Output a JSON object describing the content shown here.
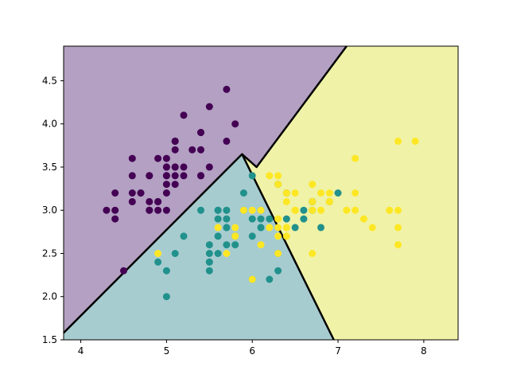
{
  "chart_data": {
    "type": "scatter",
    "title": "",
    "xlabel": "",
    "ylabel": "",
    "xlim": [
      3.8,
      8.4
    ],
    "ylim": [
      1.5,
      4.9
    ],
    "grid": false,
    "x_ticks": [
      4,
      5,
      6,
      7,
      8
    ],
    "x_tick_labels": [
      "4",
      "5",
      "6",
      "7",
      "8"
    ],
    "y_ticks": [
      1.5,
      2.0,
      2.5,
      3.0,
      3.5,
      4.0,
      4.5
    ],
    "y_tick_labels": [
      "1.5",
      "2.0",
      "2.5",
      "3.0",
      "3.5",
      "4.0",
      "4.5"
    ],
    "regions": [
      {
        "class": 0,
        "color": "#b3a0c2",
        "polygon": [
          [
            3.8,
            1.58
          ],
          [
            5.88,
            3.65
          ],
          [
            6.05,
            3.5
          ],
          [
            7.1,
            4.9
          ],
          [
            3.8,
            4.9
          ]
        ]
      },
      {
        "class": 1,
        "color": "#a7ccd0",
        "polygon": [
          [
            3.8,
            1.5
          ],
          [
            3.8,
            1.58
          ],
          [
            5.88,
            3.65
          ],
          [
            6.95,
            1.5
          ]
        ]
      },
      {
        "class": 2,
        "color": "#f0f2a7",
        "polygon": [
          [
            5.88,
            3.65
          ],
          [
            6.05,
            3.5
          ],
          [
            7.1,
            4.9
          ],
          [
            8.4,
            4.9
          ],
          [
            8.4,
            1.5
          ],
          [
            6.95,
            1.5
          ]
        ]
      }
    ],
    "boundaries": [
      [
        [
          3.8,
          1.58
        ],
        [
          5.88,
          3.65
        ],
        [
          6.95,
          1.5
        ]
      ],
      [
        [
          5.88,
          3.65
        ],
        [
          6.05,
          3.5
        ],
        [
          7.1,
          4.9
        ]
      ]
    ],
    "series": [
      {
        "class": 0,
        "color": "#440154",
        "points": [
          [
            5.1,
            3.5
          ],
          [
            4.9,
            3.0
          ],
          [
            4.7,
            3.2
          ],
          [
            4.6,
            3.1
          ],
          [
            5.0,
            3.6
          ],
          [
            5.4,
            3.9
          ],
          [
            4.6,
            3.4
          ],
          [
            5.0,
            3.4
          ],
          [
            4.4,
            2.9
          ],
          [
            4.9,
            3.1
          ],
          [
            5.4,
            3.7
          ],
          [
            4.8,
            3.4
          ],
          [
            4.8,
            3.0
          ],
          [
            4.3,
            3.0
          ],
          [
            5.8,
            4.0
          ],
          [
            5.7,
            4.4
          ],
          [
            5.4,
            3.9
          ],
          [
            5.1,
            3.5
          ],
          [
            5.7,
            3.8
          ],
          [
            5.1,
            3.8
          ],
          [
            5.4,
            3.4
          ],
          [
            5.1,
            3.7
          ],
          [
            4.6,
            3.6
          ],
          [
            5.1,
            3.3
          ],
          [
            4.8,
            3.4
          ],
          [
            5.0,
            3.0
          ],
          [
            5.0,
            3.4
          ],
          [
            5.2,
            3.5
          ],
          [
            5.2,
            3.4
          ],
          [
            4.7,
            3.2
          ],
          [
            4.8,
            3.1
          ],
          [
            5.4,
            3.4
          ],
          [
            5.2,
            4.1
          ],
          [
            5.5,
            4.2
          ],
          [
            4.9,
            3.1
          ],
          [
            5.0,
            3.2
          ],
          [
            5.5,
            3.5
          ],
          [
            4.9,
            3.6
          ],
          [
            4.4,
            3.0
          ],
          [
            5.1,
            3.4
          ],
          [
            5.0,
            3.5
          ],
          [
            4.5,
            2.3
          ],
          [
            4.4,
            3.2
          ],
          [
            5.0,
            3.5
          ],
          [
            5.1,
            3.8
          ],
          [
            4.8,
            3.0
          ],
          [
            5.1,
            3.8
          ],
          [
            4.6,
            3.2
          ],
          [
            5.3,
            3.7
          ],
          [
            5.0,
            3.3
          ]
        ]
      },
      {
        "class": 1,
        "color": "#21918c",
        "points": [
          [
            7.0,
            3.2
          ],
          [
            6.4,
            3.2
          ],
          [
            6.9,
            3.1
          ],
          [
            5.5,
            2.3
          ],
          [
            6.5,
            2.8
          ],
          [
            5.7,
            2.8
          ],
          [
            6.3,
            3.3
          ],
          [
            4.9,
            2.4
          ],
          [
            6.6,
            2.9
          ],
          [
            5.2,
            2.7
          ],
          [
            5.0,
            2.0
          ],
          [
            5.9,
            3.0
          ],
          [
            6.0,
            2.2
          ],
          [
            6.1,
            2.9
          ],
          [
            5.6,
            2.9
          ],
          [
            6.7,
            3.1
          ],
          [
            5.6,
            3.0
          ],
          [
            5.8,
            2.7
          ],
          [
            6.2,
            2.2
          ],
          [
            5.6,
            2.5
          ],
          [
            5.9,
            3.2
          ],
          [
            6.1,
            2.8
          ],
          [
            6.3,
            2.5
          ],
          [
            6.1,
            2.8
          ],
          [
            6.4,
            2.9
          ],
          [
            6.6,
            3.0
          ],
          [
            6.8,
            2.8
          ],
          [
            6.7,
            3.0
          ],
          [
            6.0,
            2.9
          ],
          [
            5.7,
            2.6
          ],
          [
            5.5,
            2.4
          ],
          [
            5.5,
            2.4
          ],
          [
            5.8,
            2.7
          ],
          [
            6.0,
            2.7
          ],
          [
            5.4,
            3.0
          ],
          [
            6.0,
            3.4
          ],
          [
            6.7,
            3.1
          ],
          [
            6.3,
            2.3
          ],
          [
            5.6,
            3.0
          ],
          [
            5.5,
            2.5
          ],
          [
            5.5,
            2.6
          ],
          [
            6.1,
            3.0
          ],
          [
            5.8,
            2.6
          ],
          [
            5.0,
            2.3
          ],
          [
            5.6,
            2.7
          ],
          [
            5.7,
            3.0
          ],
          [
            5.7,
            2.9
          ],
          [
            6.2,
            2.9
          ],
          [
            5.1,
            2.5
          ],
          [
            5.7,
            2.8
          ]
        ]
      },
      {
        "class": 2,
        "color": "#fde725",
        "points": [
          [
            6.3,
            3.3
          ],
          [
            5.8,
            2.7
          ],
          [
            7.1,
            3.0
          ],
          [
            6.3,
            2.9
          ],
          [
            6.5,
            3.0
          ],
          [
            7.6,
            3.0
          ],
          [
            4.9,
            2.5
          ],
          [
            7.3,
            2.9
          ],
          [
            6.7,
            2.5
          ],
          [
            7.2,
            3.6
          ],
          [
            6.5,
            3.2
          ],
          [
            6.4,
            2.7
          ],
          [
            6.8,
            3.0
          ],
          [
            5.7,
            2.5
          ],
          [
            5.8,
            2.8
          ],
          [
            6.4,
            3.2
          ],
          [
            6.5,
            3.0
          ],
          [
            7.7,
            3.8
          ],
          [
            7.7,
            2.6
          ],
          [
            6.0,
            2.2
          ],
          [
            6.9,
            3.2
          ],
          [
            5.6,
            2.8
          ],
          [
            7.7,
            2.8
          ],
          [
            6.3,
            2.7
          ],
          [
            6.7,
            3.3
          ],
          [
            7.2,
            3.2
          ],
          [
            6.2,
            2.8
          ],
          [
            6.1,
            3.0
          ],
          [
            6.4,
            2.8
          ],
          [
            7.2,
            3.0
          ],
          [
            7.4,
            2.8
          ],
          [
            7.9,
            3.8
          ],
          [
            6.4,
            2.8
          ],
          [
            6.3,
            2.8
          ],
          [
            6.1,
            2.6
          ],
          [
            7.7,
            3.0
          ],
          [
            6.3,
            3.4
          ],
          [
            6.4,
            3.1
          ],
          [
            6.0,
            3.0
          ],
          [
            6.9,
            3.1
          ],
          [
            6.7,
            3.1
          ],
          [
            6.9,
            3.1
          ],
          [
            5.8,
            2.7
          ],
          [
            6.8,
            3.2
          ],
          [
            6.7,
            3.3
          ],
          [
            6.7,
            3.0
          ],
          [
            6.3,
            2.5
          ],
          [
            6.5,
            3.0
          ],
          [
            6.2,
            3.4
          ],
          [
            5.9,
            3.0
          ]
        ]
      }
    ]
  }
}
